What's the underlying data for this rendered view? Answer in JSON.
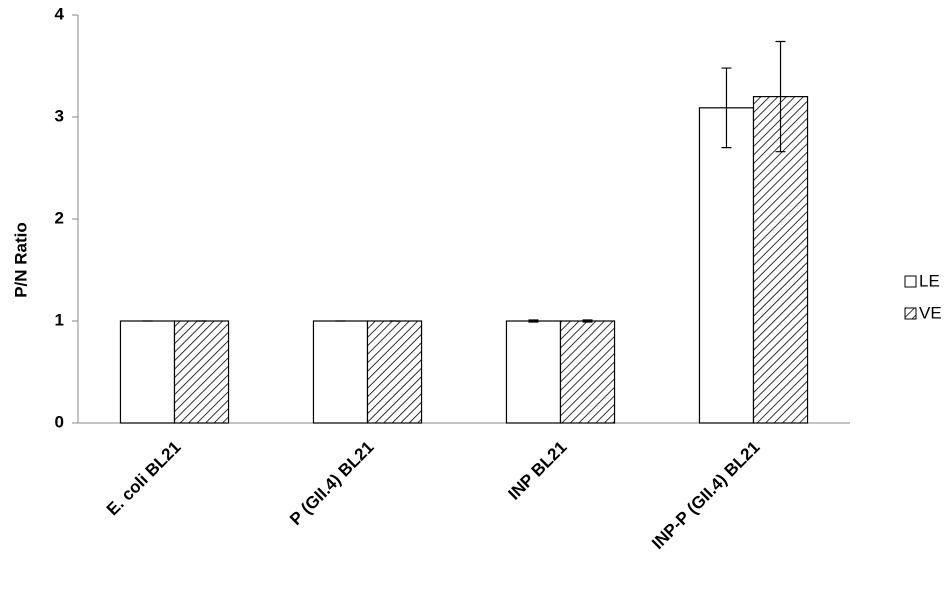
{
  "chart_data": {
    "type": "bar",
    "ylabel": "P/N Ratio",
    "categories": [
      "E. coli BL21",
      "P (GII.4) BL21",
      "INP BL21",
      "INP-P (GII.4) BL21"
    ],
    "series": [
      {
        "name": "LE",
        "color": "#ffffff",
        "hatch": false,
        "values": [
          1,
          1,
          1,
          3.09
        ],
        "errors": [
          0,
          0,
          0.01,
          0.39
        ]
      },
      {
        "name": "VE",
        "color": "#ffffff",
        "hatch": true,
        "values": [
          1,
          1,
          1,
          3.2
        ],
        "errors": [
          0,
          0,
          0.01,
          0.54
        ]
      }
    ],
    "ylim": [
      0,
      4
    ],
    "yticks": [
      0,
      1,
      2,
      3,
      4
    ],
    "grid": false,
    "legend": "right"
  }
}
